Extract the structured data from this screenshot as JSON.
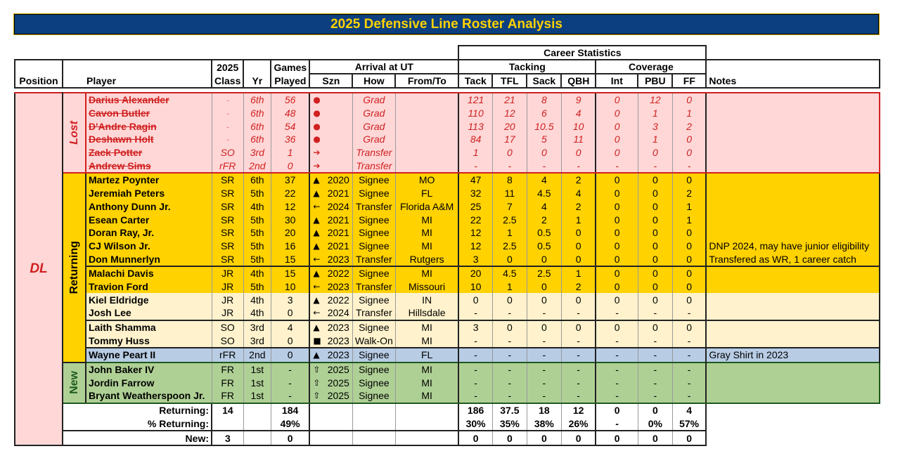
{
  "title": "2025 Defensive Line Roster Analysis",
  "headers": {
    "career": "Career Statistics",
    "position": "Position",
    "player": "Player",
    "class_top": "2025",
    "class_bot": "Class",
    "yr": "Yr",
    "games_top": "Games",
    "games_bot": "Played",
    "arrival": "Arrival at UT",
    "szn": "Szn",
    "how": "How",
    "from": "From/To",
    "tacking": "Tacking",
    "coverage": "Coverage",
    "tack": "Tack",
    "tfl": "TFL",
    "sack": "Sack",
    "qbh": "QBH",
    "int": "Int",
    "pbu": "PBU",
    "ff": "FF",
    "notes": "Notes"
  },
  "position": "DL",
  "colors": {
    "navy": "#003f7f",
    "gold": "#ffd200",
    "lost": "#ffd7d7",
    "lost_text": "#d02020",
    "cream": "#fff2cc",
    "blue": "#b8cce4",
    "green": "#afd095"
  },
  "icons": {
    "grad": "red-circle-icon",
    "out": "arrow-right-icon",
    "signee": "triangle-up-icon",
    "transfer_in": "arrow-left-icon",
    "walkon": "square-icon",
    "new": "outline-arrow-up-icon"
  },
  "groups": [
    {
      "label": "Lost",
      "color": "#d02020",
      "subgroups": [
        {
          "style": "lost",
          "rows": [
            [
              "Darius Alexander",
              "-",
              "6th",
              "56",
              "grad",
              "",
              "Grad",
              "",
              "121",
              "21",
              "8",
              "9",
              "0",
              "12",
              "0",
              ""
            ],
            [
              "Cavon Butler",
              "-",
              "6th",
              "48",
              "grad",
              "",
              "Grad",
              "",
              "110",
              "12",
              "6",
              "4",
              "0",
              "1",
              "1",
              ""
            ],
            [
              "D'Andre Ragin",
              "-",
              "6th",
              "54",
              "grad",
              "",
              "Grad",
              "",
              "113",
              "20",
              "10.5",
              "10",
              "0",
              "3",
              "2",
              ""
            ],
            [
              "Deshawn Holt",
              "-",
              "6th",
              "36",
              "grad",
              "",
              "Grad",
              "",
              "84",
              "17",
              "5",
              "11",
              "0",
              "1",
              "0",
              ""
            ],
            [
              "Zack Potter",
              "SO",
              "3rd",
              "1",
              "out",
              "",
              "Transfer",
              "",
              "1",
              "0",
              "0",
              "0",
              "0",
              "0",
              "0",
              ""
            ],
            [
              "Andrew Sims",
              "rFR",
              "2nd",
              "0",
              "out",
              "",
              "Transfer",
              "",
              "-",
              "-",
              "-",
              "-",
              "-",
              "-",
              "-",
              ""
            ]
          ]
        }
      ]
    },
    {
      "label": "Returning",
      "color": "#000000",
      "subgroups": [
        {
          "style": "yellow",
          "rows": [
            [
              "Martez Poynter",
              "SR",
              "6th",
              "37",
              "signee",
              "2020",
              "Signee",
              "MO",
              "47",
              "8",
              "4",
              "2",
              "0",
              "0",
              "0",
              ""
            ],
            [
              "Jeremiah Peters",
              "SR",
              "5th",
              "22",
              "signee",
              "2021",
              "Signee",
              "FL",
              "32",
              "11",
              "4.5",
              "4",
              "0",
              "0",
              "2",
              ""
            ],
            [
              "Anthony Dunn Jr.",
              "SR",
              "4th",
              "12",
              "transfer_in",
              "2024",
              "Transfer",
              "Florida A&M",
              "25",
              "7",
              "4",
              "2",
              "0",
              "0",
              "1",
              ""
            ],
            [
              "Esean Carter",
              "SR",
              "5th",
              "30",
              "signee",
              "2021",
              "Signee",
              "MI",
              "22",
              "2.5",
              "2",
              "1",
              "0",
              "0",
              "1",
              ""
            ],
            [
              "Doran Ray, Jr.",
              "SR",
              "5th",
              "20",
              "signee",
              "2021",
              "Signee",
              "MI",
              "12",
              "1",
              "0.5",
              "0",
              "0",
              "0",
              "0",
              ""
            ],
            [
              "CJ Wilson Jr.",
              "SR",
              "5th",
              "16",
              "signee",
              "2021",
              "Signee",
              "MI",
              "12",
              "2.5",
              "0.5",
              "0",
              "0",
              "0",
              "0",
              "DNP 2024, may have junior eligibility"
            ],
            [
              "Don Munnerlyn",
              "SR",
              "5th",
              "15",
              "transfer_in",
              "2023",
              "Transfer",
              "Rutgers",
              "3",
              "0",
              "0",
              "0",
              "0",
              "0",
              "0",
              "Transfered as WR, 1 career catch"
            ]
          ]
        },
        {
          "style": "yellow",
          "rows": [
            [
              "Malachi Davis",
              "JR",
              "4th",
              "15",
              "signee",
              "2022",
              "Signee",
              "MI",
              "20",
              "4.5",
              "2.5",
              "1",
              "0",
              "0",
              "0",
              ""
            ],
            [
              "Travion Ford",
              "JR",
              "5th",
              "10",
              "transfer_in",
              "2023",
              "Transfer",
              "Missouri",
              "10",
              "1",
              "0",
              "2",
              "0",
              "0",
              "0",
              ""
            ]
          ]
        },
        {
          "style": "cream",
          "nobreak": true,
          "rows": [
            [
              "Kiel Eldridge",
              "JR",
              "4th",
              "3",
              "signee",
              "2022",
              "Signee",
              "IN",
              "0",
              "0",
              "0",
              "0",
              "0",
              "0",
              "0",
              ""
            ],
            [
              "Josh Lee",
              "JR",
              "4th",
              "0",
              "transfer_in",
              "2024",
              "Transfer",
              "Hillsdale",
              "-",
              "-",
              "-",
              "-",
              "-",
              "-",
              "-",
              ""
            ]
          ]
        },
        {
          "style": "cream",
          "rows": [
            [
              "Laith Shamma",
              "SO",
              "3rd",
              "4",
              "signee",
              "2023",
              "Signee",
              "MI",
              "3",
              "0",
              "0",
              "0",
              "0",
              "0",
              "0",
              ""
            ],
            [
              "Tommy Huss",
              "SO",
              "3rd",
              "0",
              "walkon",
              "2023",
              "Walk-On",
              "MI",
              "-",
              "-",
              "-",
              "-",
              "-",
              "-",
              "-",
              ""
            ]
          ]
        },
        {
          "style": "blue",
          "rows": [
            [
              "Wayne Peart II",
              "rFR",
              "2nd",
              "0",
              "signee",
              "2023",
              "Signee",
              "FL",
              "-",
              "-",
              "-",
              "-",
              "-",
              "-",
              "-",
              "Gray Shirt in 2023"
            ]
          ]
        }
      ]
    },
    {
      "label": "New",
      "color": "#1e5a1e",
      "subgroups": [
        {
          "style": "green",
          "rows": [
            [
              "John Baker IV",
              "FR",
              "1st",
              "-",
              "new",
              "2025",
              "Signee",
              "MI",
              "-",
              "-",
              "-",
              "-",
              "-",
              "-",
              "-",
              ""
            ],
            [
              "Jordin Farrow",
              "FR",
              "1st",
              "-",
              "new",
              "2025",
              "Signee",
              "MI",
              "-",
              "-",
              "-",
              "-",
              "-",
              "-",
              "-",
              ""
            ],
            [
              "Bryant Weatherspoon Jr.",
              "FR",
              "1st",
              "-",
              "new",
              "2025",
              "Signee",
              "MI",
              "-",
              "-",
              "-",
              "-",
              "-",
              "-",
              "-",
              ""
            ]
          ]
        }
      ]
    }
  ],
  "totals": [
    [
      "Returning:",
      "14",
      "",
      "184",
      "",
      "",
      "",
      "186",
      "37.5",
      "18",
      "12",
      "0",
      "0",
      "4"
    ],
    [
      "% Returning:",
      "",
      "",
      "49%",
      "",
      "",
      "",
      "30%",
      "35%",
      "38%",
      "26%",
      "-",
      "0%",
      "57%"
    ],
    [
      "New:",
      "3",
      "",
      "0",
      "",
      "",
      "",
      "0",
      "0",
      "0",
      "0",
      "0",
      "0",
      "0"
    ]
  ]
}
